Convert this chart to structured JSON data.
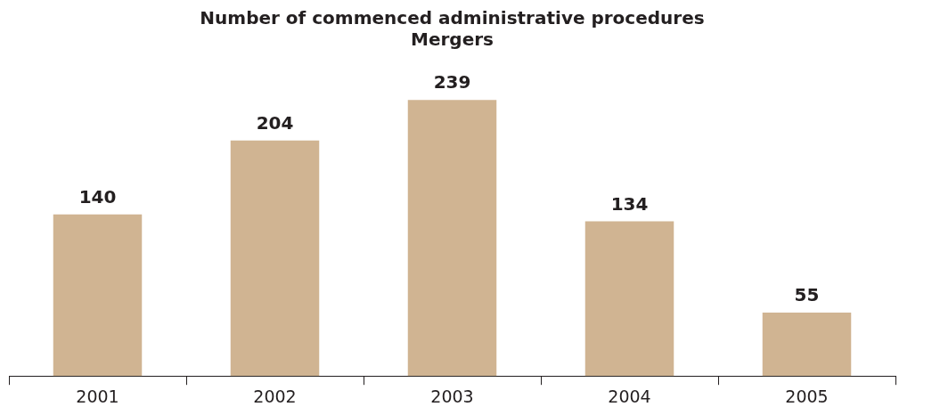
{
  "chart_data": {
    "type": "bar",
    "title": "Number of commenced administrative procedures",
    "subtitle": "Mergers",
    "categories": [
      "2001",
      "2002",
      "2003",
      "2004",
      "2005"
    ],
    "values": [
      140,
      204,
      239,
      134,
      55
    ],
    "color": "#d0b492",
    "data_labels": true,
    "tick_labels": "x",
    "grid": false,
    "legend": false
  }
}
